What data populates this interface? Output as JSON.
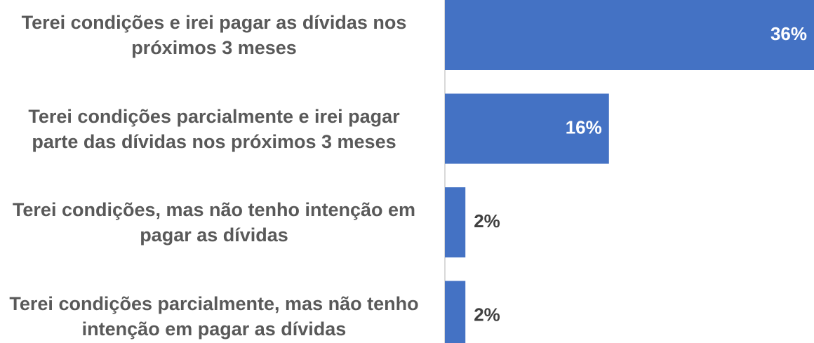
{
  "chart_data": {
    "type": "bar",
    "orientation": "horizontal",
    "categories": [
      "Terei condições  e irei pagar as dívidas nos próximos 3 meses",
      "Terei condições parcialmente e irei pagar parte das dívidas nos próximos 3 meses",
      "Terei condições, mas não tenho intenção em pagar as dívidas",
      "Terei condições parcialmente, mas não tenho intenção em pagar as dívidas"
    ],
    "values": [
      36,
      16,
      2,
      2
    ],
    "value_labels": [
      "36%",
      "16%",
      "2%",
      "2%"
    ],
    "color": "#4472c4",
    "xlim": [
      0,
      36
    ]
  }
}
